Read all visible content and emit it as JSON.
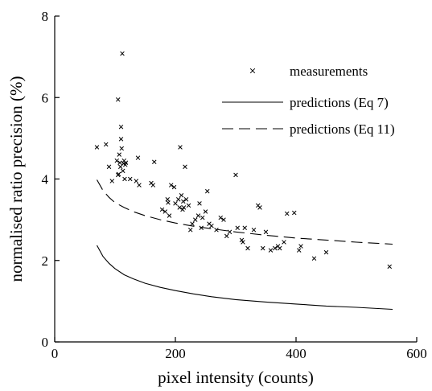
{
  "chart_data": {
    "type": "scatter",
    "title": "",
    "xlabel": "pixel intensity (counts)",
    "ylabel": "normalised ratio precision (%)",
    "xlim": [
      0,
      600
    ],
    "ylim": [
      0,
      8
    ],
    "xticks": [
      0,
      200,
      400,
      600
    ],
    "yticks": [
      0,
      2,
      4,
      6,
      8
    ],
    "grid": false,
    "legend_position": "top-right",
    "series": [
      {
        "name": "measurements",
        "kind": "scatter",
        "marker": "x",
        "points": [
          [
            70,
            4.78
          ],
          [
            85,
            4.85
          ],
          [
            90,
            4.3
          ],
          [
            95,
            3.95
          ],
          [
            105,
            5.95
          ],
          [
            103,
            4.45
          ],
          [
            105,
            4.1
          ],
          [
            106,
            4.12
          ],
          [
            107,
            4.6
          ],
          [
            108,
            4.4
          ],
          [
            109,
            4.3
          ],
          [
            110,
            4.98
          ],
          [
            110,
            5.28
          ],
          [
            111,
            4.75
          ],
          [
            112,
            7.08
          ],
          [
            113,
            4.2
          ],
          [
            114,
            4.38
          ],
          [
            115,
            4.45
          ],
          [
            116,
            4.0
          ],
          [
            117,
            4.35
          ],
          [
            118,
            4.4
          ],
          [
            125,
            4.0
          ],
          [
            135,
            3.95
          ],
          [
            138,
            4.52
          ],
          [
            140,
            3.85
          ],
          [
            160,
            3.9
          ],
          [
            163,
            3.85
          ],
          [
            165,
            4.42
          ],
          [
            178,
            3.25
          ],
          [
            183,
            3.2
          ],
          [
            187,
            3.5
          ],
          [
            188,
            3.42
          ],
          [
            190,
            3.1
          ],
          [
            193,
            3.85
          ],
          [
            198,
            3.8
          ],
          [
            200,
            3.4
          ],
          [
            205,
            3.5
          ],
          [
            207,
            3.3
          ],
          [
            208,
            4.78
          ],
          [
            210,
            3.6
          ],
          [
            212,
            3.25
          ],
          [
            213,
            3.45
          ],
          [
            214,
            3.3
          ],
          [
            216,
            4.3
          ],
          [
            218,
            3.5
          ],
          [
            222,
            3.35
          ],
          [
            225,
            2.75
          ],
          [
            228,
            2.9
          ],
          [
            233,
            3.0
          ],
          [
            238,
            3.1
          ],
          [
            240,
            3.4
          ],
          [
            243,
            2.8
          ],
          [
            245,
            3.05
          ],
          [
            250,
            3.2
          ],
          [
            253,
            3.7
          ],
          [
            256,
            2.9
          ],
          [
            260,
            2.85
          ],
          [
            268,
            2.75
          ],
          [
            275,
            3.05
          ],
          [
            280,
            3.0
          ],
          [
            285,
            2.6
          ],
          [
            290,
            2.7
          ],
          [
            300,
            4.1
          ],
          [
            303,
            2.8
          ],
          [
            310,
            2.5
          ],
          [
            312,
            2.45
          ],
          [
            315,
            2.8
          ],
          [
            320,
            2.3
          ],
          [
            330,
            2.75
          ],
          [
            337,
            3.35
          ],
          [
            340,
            3.3
          ],
          [
            345,
            2.3
          ],
          [
            350,
            2.7
          ],
          [
            358,
            2.25
          ],
          [
            365,
            2.3
          ],
          [
            370,
            2.35
          ],
          [
            373,
            2.3
          ],
          [
            380,
            2.45
          ],
          [
            385,
            3.15
          ],
          [
            397,
            3.17
          ],
          [
            405,
            2.25
          ],
          [
            408,
            2.35
          ],
          [
            430,
            2.05
          ],
          [
            450,
            2.2
          ],
          [
            555,
            1.85
          ]
        ]
      },
      {
        "name": "predictions (Eq 7)",
        "kind": "line",
        "dash": "solid",
        "x": [
          70,
          80,
          90,
          100,
          115,
          130,
          150,
          175,
          200,
          230,
          260,
          300,
          350,
          400,
          450,
          500,
          560
        ],
        "y": [
          2.37,
          2.1,
          1.93,
          1.8,
          1.65,
          1.55,
          1.44,
          1.34,
          1.26,
          1.18,
          1.11,
          1.04,
          0.98,
          0.93,
          0.88,
          0.85,
          0.8
        ]
      },
      {
        "name": "predictions (Eq 11)",
        "kind": "line",
        "dash": "dashed",
        "x": [
          70,
          80,
          90,
          100,
          115,
          130,
          150,
          175,
          200,
          230,
          260,
          300,
          350,
          400,
          450,
          500,
          560
        ],
        "y": [
          3.98,
          3.72,
          3.55,
          3.42,
          3.3,
          3.2,
          3.1,
          3.0,
          2.92,
          2.84,
          2.78,
          2.7,
          2.62,
          2.55,
          2.5,
          2.45,
          2.4
        ]
      }
    ]
  }
}
